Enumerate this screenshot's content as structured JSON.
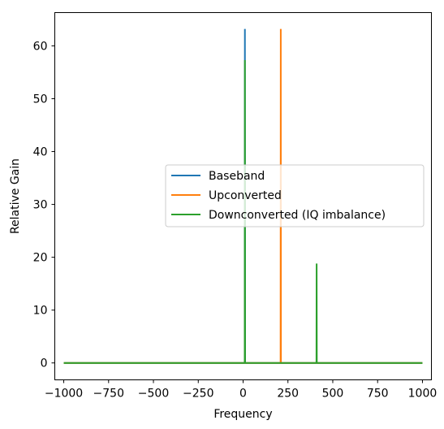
{
  "chart_data": {
    "type": "line",
    "title": "",
    "xlabel": "Frequency",
    "ylabel": "Relative Gain",
    "xlim": [
      -1050,
      1050
    ],
    "ylim": [
      -3.2,
      66.3
    ],
    "xticks": [
      -1000,
      -750,
      -500,
      -250,
      0,
      250,
      500,
      750,
      1000
    ],
    "xtick_labels": [
      "−1000",
      "−750",
      "−500",
      "−250",
      "0",
      "250",
      "500",
      "750",
      "1000"
    ],
    "yticks": [
      0,
      10,
      20,
      30,
      40,
      50,
      60
    ],
    "ytick_labels": [
      "0",
      "10",
      "20",
      "30",
      "40",
      "50",
      "60"
    ],
    "grid": false,
    "legend_position": "center-right",
    "series": [
      {
        "name": "Baseband",
        "color": "#1f77b4",
        "x": [
          -1000,
          9,
          10,
          11,
          1000
        ],
        "y": [
          0,
          0,
          63.2,
          0,
          0
        ]
      },
      {
        "name": "Upconverted",
        "color": "#ff7f0e",
        "x": [
          -1000,
          209,
          210,
          211,
          1000
        ],
        "y": [
          0,
          0,
          63.2,
          0,
          0
        ]
      },
      {
        "name": "Downconverted (IQ imbalance)",
        "color": "#2ca02c",
        "x": [
          -1000,
          9,
          10,
          11,
          409,
          410,
          411,
          1000
        ],
        "y": [
          0,
          0,
          57.3,
          0,
          0,
          18.8,
          0,
          0
        ]
      }
    ]
  }
}
